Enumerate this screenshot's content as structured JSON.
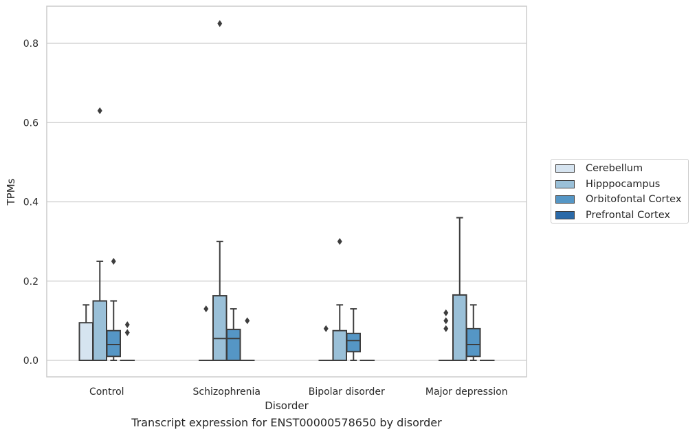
{
  "chart_data": {
    "type": "box",
    "xlabel": "Disorder",
    "ylabel": "TPMs",
    "ylim": [
      -0.04,
      0.895
    ],
    "yticks": [
      0.0,
      0.2,
      0.4,
      0.6,
      0.8
    ],
    "ytick_labels": [
      "0.0",
      "0.2",
      "0.4",
      "0.6",
      "0.8"
    ],
    "categories": [
      "Control",
      "Schizophrenia",
      "Bipolar disorder",
      "Major depression"
    ],
    "grid": "horizontal",
    "legend_position": "right",
    "series": [
      {
        "name": "Cerebellum",
        "color": "#d6e4f0",
        "boxes": [
          {
            "q1": 0.0,
            "median": 0.0,
            "q3": 0.095,
            "whisker_low": 0.0,
            "whisker_high": 0.14,
            "outliers": []
          },
          {
            "q1": 0.0,
            "median": 0.0,
            "q3": 0.0,
            "whisker_low": 0.0,
            "whisker_high": 0.0,
            "outliers": [
              0.13
            ]
          },
          {
            "q1": 0.0,
            "median": 0.0,
            "q3": 0.0,
            "whisker_low": 0.0,
            "whisker_high": 0.0,
            "outliers": [
              0.08
            ]
          },
          {
            "q1": 0.0,
            "median": 0.0,
            "q3": 0.0,
            "whisker_low": 0.0,
            "whisker_high": 0.0,
            "outliers": [
              0.08,
              0.1,
              0.12
            ]
          }
        ]
      },
      {
        "name": "Hipppocampus",
        "color": "#9ac0d8",
        "boxes": [
          {
            "q1": 0.0,
            "median": 0.0,
            "q3": 0.15,
            "whisker_low": 0.0,
            "whisker_high": 0.25,
            "outliers": [
              0.63
            ]
          },
          {
            "q1": 0.0,
            "median": 0.055,
            "q3": 0.163,
            "whisker_low": 0.0,
            "whisker_high": 0.3,
            "outliers": [
              0.85
            ]
          },
          {
            "q1": 0.0,
            "median": 0.0,
            "q3": 0.075,
            "whisker_low": 0.0,
            "whisker_high": 0.14,
            "outliers": [
              0.3
            ]
          },
          {
            "q1": 0.0,
            "median": 0.0,
            "q3": 0.165,
            "whisker_low": 0.0,
            "whisker_high": 0.36,
            "outliers": []
          }
        ]
      },
      {
        "name": "Orbitofontal Cortex",
        "color": "#5596c5",
        "boxes": [
          {
            "q1": 0.01,
            "median": 0.04,
            "q3": 0.075,
            "whisker_low": 0.0,
            "whisker_high": 0.15,
            "outliers": [
              0.25
            ]
          },
          {
            "q1": 0.0,
            "median": 0.055,
            "q3": 0.078,
            "whisker_low": 0.0,
            "whisker_high": 0.13,
            "outliers": []
          },
          {
            "q1": 0.022,
            "median": 0.05,
            "q3": 0.068,
            "whisker_low": 0.0,
            "whisker_high": 0.13,
            "outliers": []
          },
          {
            "q1": 0.01,
            "median": 0.04,
            "q3": 0.08,
            "whisker_low": 0.0,
            "whisker_high": 0.14,
            "outliers": []
          }
        ]
      },
      {
        "name": "Prefrontal Cortex",
        "color": "#2b6aa8",
        "boxes": [
          {
            "q1": 0.0,
            "median": 0.0,
            "q3": 0.0,
            "whisker_low": 0.0,
            "whisker_high": 0.0,
            "outliers": [
              0.07,
              0.09
            ]
          },
          {
            "q1": 0.0,
            "median": 0.0,
            "q3": 0.0,
            "whisker_low": 0.0,
            "whisker_high": 0.0,
            "outliers": [
              0.1
            ]
          },
          {
            "q1": 0.0,
            "median": 0.0,
            "q3": 0.0,
            "whisker_low": 0.0,
            "whisker_high": 0.0,
            "outliers": []
          },
          {
            "q1": 0.0,
            "median": 0.0,
            "q3": 0.0,
            "whisker_low": 0.0,
            "whisker_high": 0.0,
            "outliers": []
          }
        ]
      }
    ],
    "caption": "Transcript expression for ENST00000578650 by disorder"
  }
}
